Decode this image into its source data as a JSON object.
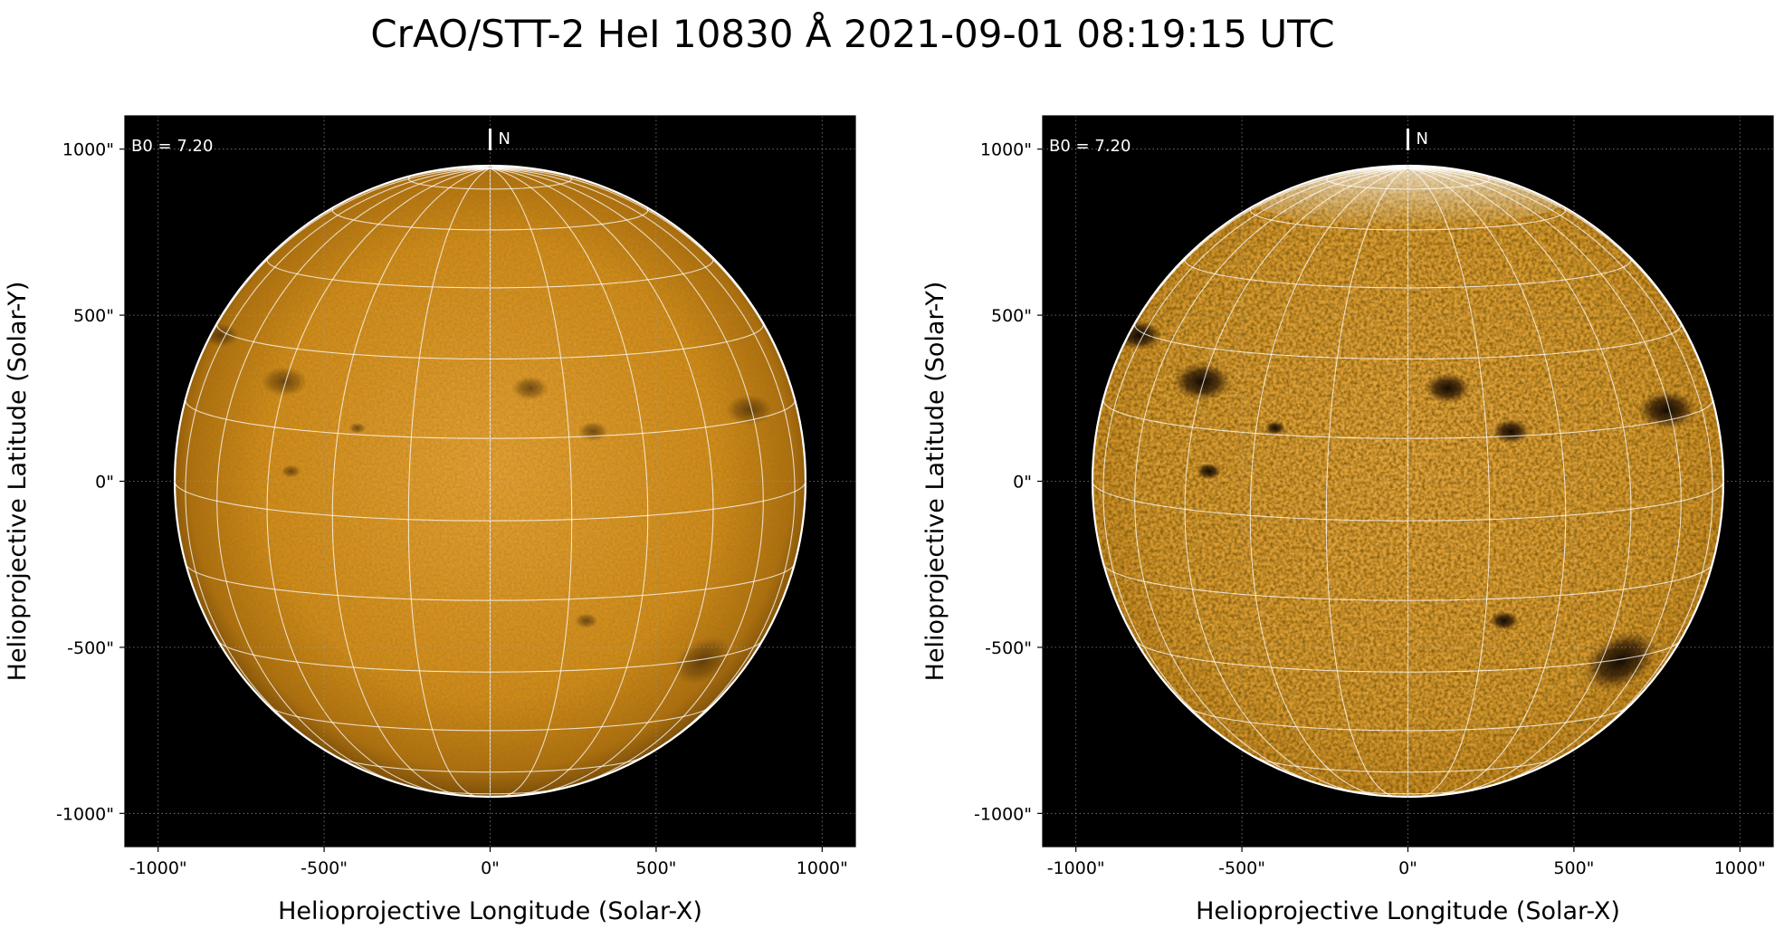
{
  "figure": {
    "title": "CrAO/STT-2 HeI 10830 Å 2021-09-01 08:19:15 UTC"
  },
  "colors": {
    "background": "#000000",
    "disk_center": "#e8a232",
    "disk_mid": "#d38c17",
    "disk_edge": "#8a5505",
    "limb": "#ffffff",
    "grid": "#ffffff",
    "feature": "#1a0d02"
  },
  "panels": [
    {
      "id": "left",
      "b0_label": "B0 = 7.20",
      "north_label": "N",
      "xlabel": "Helioprojective Longitude (Solar-X)",
      "ylabel": "Helioprojective Latitude (Solar-Y)",
      "xticks": [
        "-1000\"",
        "-500\"",
        "0\"",
        "500\"",
        "1000\""
      ],
      "yticks": [
        "1000\"",
        "500\"",
        "0\"",
        "-500\"",
        "-1000\""
      ],
      "enhanced": false
    },
    {
      "id": "right",
      "b0_label": "B0 = 7.20",
      "north_label": "N",
      "xlabel": "Helioprojective Longitude (Solar-X)",
      "ylabel": "Helioprojective Latitude (Solar-Y)",
      "xticks": [
        "-1000\"",
        "-500\"",
        "0\"",
        "500\"",
        "1000\""
      ],
      "yticks": [
        "1000\"",
        "500\"",
        "0\"",
        "-500\"",
        "-1000\""
      ],
      "enhanced": true
    }
  ],
  "chart_data": {
    "type": "image",
    "axis_unit": "arcsec",
    "xlim": [
      -1100,
      1100
    ],
    "ylim": [
      -1100,
      1100
    ],
    "tick_values": [
      -1000,
      -500,
      0,
      500,
      1000
    ],
    "disk_radius_arcsec": 950,
    "b0_deg": 7.2,
    "grid": "heliographic",
    "grid_spacing_deg": 15,
    "dark_features": [
      {
        "x": 120,
        "y": 280,
        "size": 55
      },
      {
        "x": -620,
        "y": 300,
        "size": 70
      },
      {
        "x": -810,
        "y": 440,
        "size": 55
      },
      {
        "x": 310,
        "y": 150,
        "size": 45
      },
      {
        "x": 780,
        "y": 215,
        "size": 70
      },
      {
        "x": 640,
        "y": -540,
        "size": 95
      },
      {
        "x": 290,
        "y": -420,
        "size": 35
      },
      {
        "x": -600,
        "y": 30,
        "size": 30
      },
      {
        "x": -400,
        "y": 160,
        "size": 25
      }
    ]
  }
}
